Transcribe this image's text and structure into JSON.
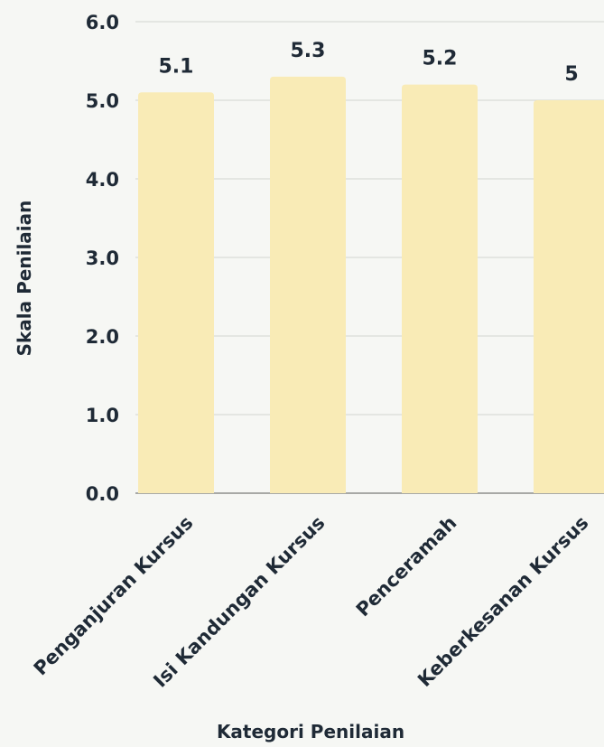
{
  "chart_data": {
    "type": "bar",
    "title": "",
    "xlabel": "Kategori Penilaian",
    "ylabel": "Skala Penilaian",
    "categories": [
      "Penganjuran Kursus",
      "Isi Kandungan Kursus",
      "Penceramah",
      "Keberkesanan Kursus"
    ],
    "values": [
      5.1,
      5.3,
      5.2,
      5.0
    ],
    "value_labels": [
      "5.1",
      "5.3",
      "5.2",
      "5"
    ],
    "ylim": [
      0,
      6
    ],
    "yticks": [
      "0.0",
      "1.0",
      "2.0",
      "3.0",
      "4.0",
      "5.0",
      "6.0"
    ],
    "grid": true,
    "legend": "none",
    "colors": {
      "bar": "#f9ebb6",
      "grid": "#d3d4d0",
      "text": "#1f2a36",
      "background": "#f6f7f4"
    }
  }
}
